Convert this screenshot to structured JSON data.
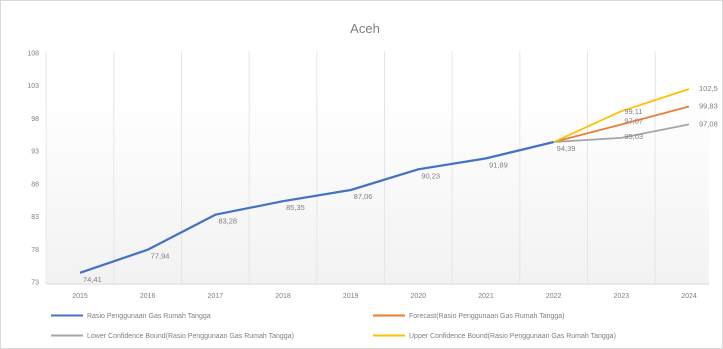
{
  "chart_data": {
    "type": "line",
    "title": "Aceh",
    "xlabel": "",
    "ylabel": "",
    "categories": [
      "2015",
      "2016",
      "2017",
      "2018",
      "2019",
      "2020",
      "2021",
      "2022",
      "2023",
      "2024"
    ],
    "yticks": [
      "108",
      "103",
      "98",
      "93",
      "88",
      "83",
      "78",
      "73"
    ],
    "ylim": [
      73,
      108
    ],
    "grid": "vertical",
    "legend_position": "bottom",
    "series": [
      {
        "name": "Rasio Penggunaan Gas Rumah Tangga",
        "color": "#4472c4",
        "values": [
          74.41,
          77.94,
          83.28,
          85.35,
          87.06,
          90.23,
          91.89,
          94.39,
          null,
          null
        ],
        "labels": [
          "74,41",
          "77,94",
          "83,28",
          "85,35",
          "87,06",
          "90,23",
          "91,89",
          "94,39",
          "",
          ""
        ]
      },
      {
        "name": "Forecast(Rasio Penggunaan Gas Rumah Tangga)",
        "color": "#ed7d31",
        "values": [
          null,
          null,
          null,
          null,
          null,
          null,
          null,
          94.39,
          97.07,
          99.83
        ],
        "labels": [
          "",
          "",
          "",
          "",
          "",
          "",
          "",
          "",
          "97,07",
          "99,83"
        ]
      },
      {
        "name": "Lower Confidence Bound(Rasio Penggunaan Gas Rumah Tangga)",
        "color": "#a5a5a5",
        "values": [
          null,
          null,
          null,
          null,
          null,
          null,
          null,
          94.39,
          95.03,
          97.08
        ],
        "labels": [
          "",
          "",
          "",
          "",
          "",
          "",
          "",
          "",
          "95,03",
          "97,08"
        ]
      },
      {
        "name": "Upper Confidence Bound(Rasio Penggunaan Gas Rumah Tangga)",
        "color": "#ffc000",
        "values": [
          null,
          null,
          null,
          null,
          null,
          null,
          null,
          94.39,
          99.11,
          102.5
        ],
        "labels": [
          "",
          "",
          "",
          "",
          "",
          "",
          "",
          "",
          "99,11",
          "102,5"
        ]
      }
    ]
  }
}
